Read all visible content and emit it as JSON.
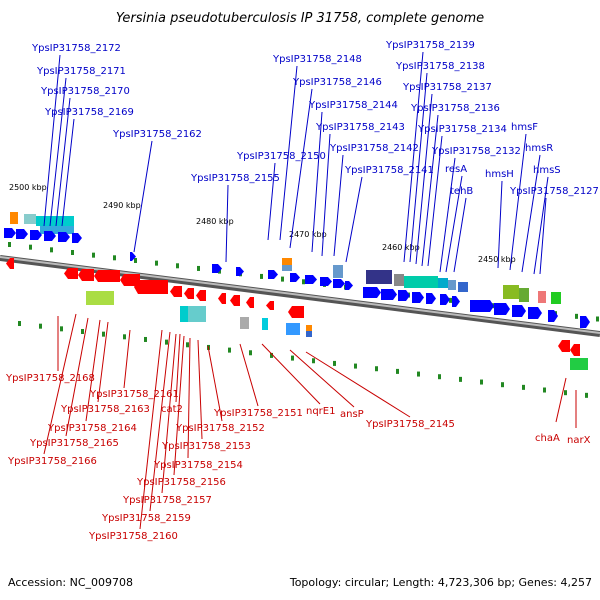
{
  "title": "Yersinia pseudotuberculosis IP 31758, complete genome",
  "footer": {
    "accession": "Accession: NC_009708",
    "summary": "Topology: circular; Length: 4,723,306 bp; Genes: 4,257"
  },
  "colors": {
    "forward_label": "#0000c8",
    "reverse_label": "#c80000",
    "forward_gene": "#0000ff",
    "reverse_gene": "#ff0000",
    "backbone": "#777777",
    "tick": "#228822"
  },
  "kbp_ticks": [
    "2500 kbp",
    "2490 kbp",
    "2480 kbp",
    "2470 kbp",
    "2460 kbp",
    "2450 kbp"
  ],
  "forward_genes": [
    "YpsIP31758_2172",
    "YpsIP31758_2171",
    "YpsIP31758_2170",
    "YpsIP31758_2169",
    "YpsIP31758_2162",
    "YpsIP31758_2155",
    "YpsIP31758_2150",
    "YpsIP31758_2148",
    "YpsIP31758_2146",
    "YpsIP31758_2144",
    "YpsIP31758_2143",
    "YpsIP31758_2142",
    "YpsIP31758_2141",
    "YpsIP31758_2139",
    "YpsIP31758_2138",
    "YpsIP31758_2137",
    "YpsIP31758_2136",
    "YpsIP31758_2134",
    "YpsIP31758_2132",
    "resA",
    "tehB",
    "hmsH",
    "hmsF",
    "hmsR",
    "hmsS",
    "YpsIP31758_2127"
  ],
  "reverse_genes": [
    "YpsIP31758_2168",
    "YpsIP31758_2161",
    "YpsIP31758_2163",
    "cat2",
    "YpsIP31758_2164",
    "YpsIP31758_2165",
    "YpsIP31758_2166",
    "YpsIP31758_2151",
    "nqrE1",
    "ansP",
    "YpsIP31758_2145",
    "YpsIP31758_2152",
    "YpsIP31758_2153",
    "YpsIP31758_2154",
    "YpsIP31758_2156",
    "YpsIP31758_2157",
    "YpsIP31758_2159",
    "YpsIP31758_2160",
    "chaA",
    "narX"
  ]
}
